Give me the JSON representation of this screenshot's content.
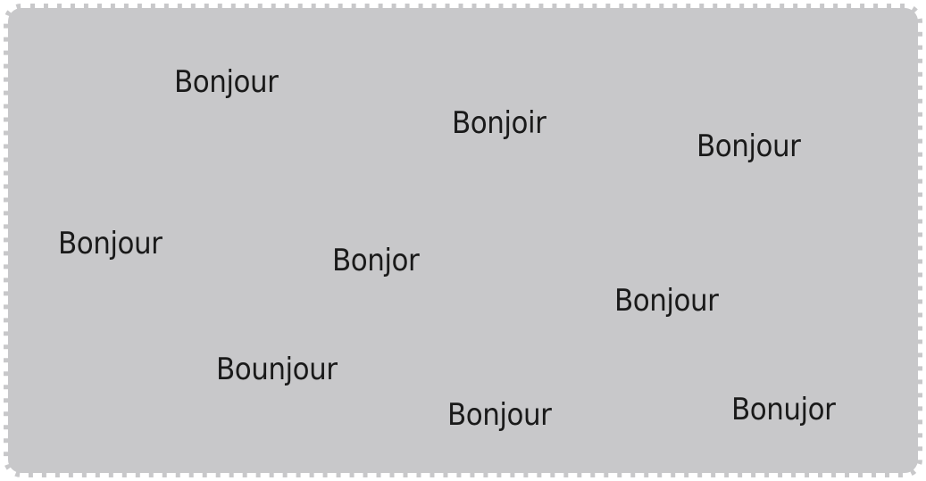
{
  "card": {
    "background": "#c8c8ca",
    "border_color": "#ffffff",
    "words": [
      "Bonjour",
      "Bonjoir",
      "Bonjour",
      "Bonjour",
      "Bonjor",
      "Bonjour",
      "Bounjour",
      "Bonjour",
      "Bonujor"
    ]
  }
}
